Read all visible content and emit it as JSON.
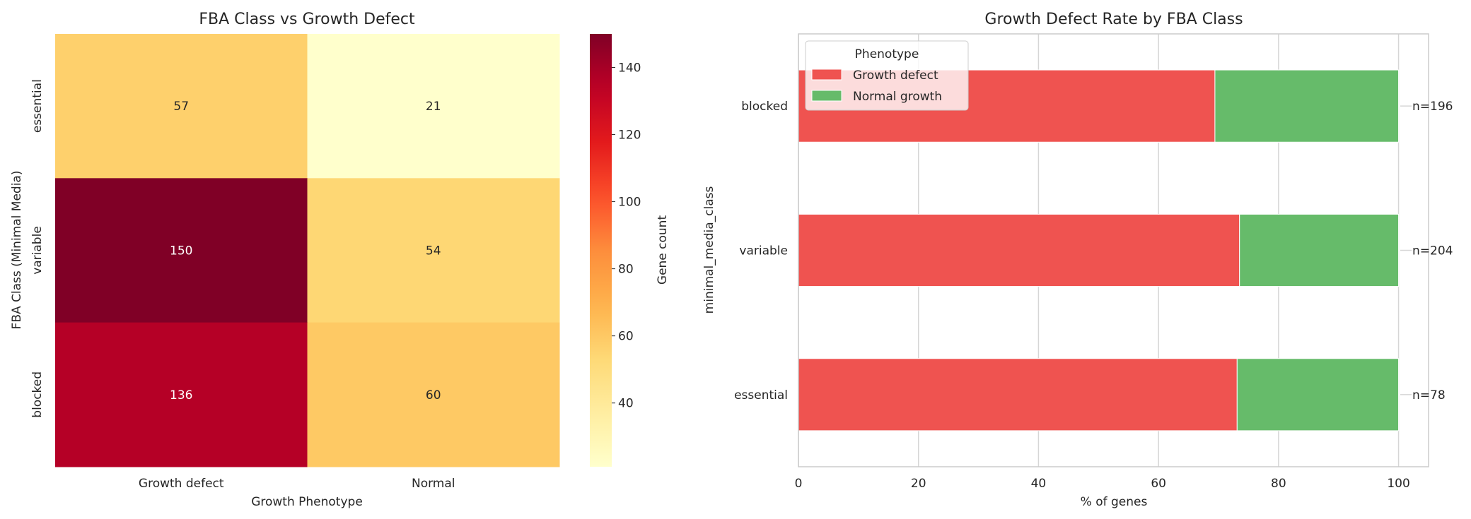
{
  "chart_data": [
    {
      "type": "heatmap",
      "title": "FBA Class vs Growth Defect",
      "xlabel": "Growth Phenotype",
      "ylabel": "FBA Class (Minimal Media)",
      "x_categories": [
        "Growth defect",
        "Normal"
      ],
      "y_categories": [
        "essential",
        "variable",
        "blocked"
      ],
      "values": [
        [
          57,
          21
        ],
        [
          150,
          54
        ],
        [
          136,
          60
        ]
      ],
      "colormap": "YlOrRd",
      "colorbar": {
        "label": "Gene count",
        "range": [
          21,
          150
        ],
        "ticks": [
          40,
          60,
          80,
          100,
          120,
          140
        ]
      }
    },
    {
      "type": "bar",
      "orientation": "horizontal",
      "stacked": true,
      "title": "Growth Defect Rate by FBA Class",
      "xlabel": "% of genes",
      "ylabel": "minimal_media_class",
      "categories": [
        "essential",
        "variable",
        "blocked"
      ],
      "series": [
        {
          "name": "Growth defect",
          "values": [
            73.1,
            73.5,
            69.4
          ],
          "color": "#ef5350"
        },
        {
          "name": "Normal growth",
          "values": [
            26.9,
            26.5,
            30.6
          ],
          "color": "#66bb6a"
        }
      ],
      "annotations": [
        "n=78",
        "n=204",
        "n=196"
      ],
      "legend": {
        "title": "Phenotype",
        "placement": "top-left"
      },
      "xlim": [
        0,
        105
      ],
      "xticks": [
        0,
        20,
        40,
        60,
        80,
        100
      ],
      "grid": true
    }
  ]
}
